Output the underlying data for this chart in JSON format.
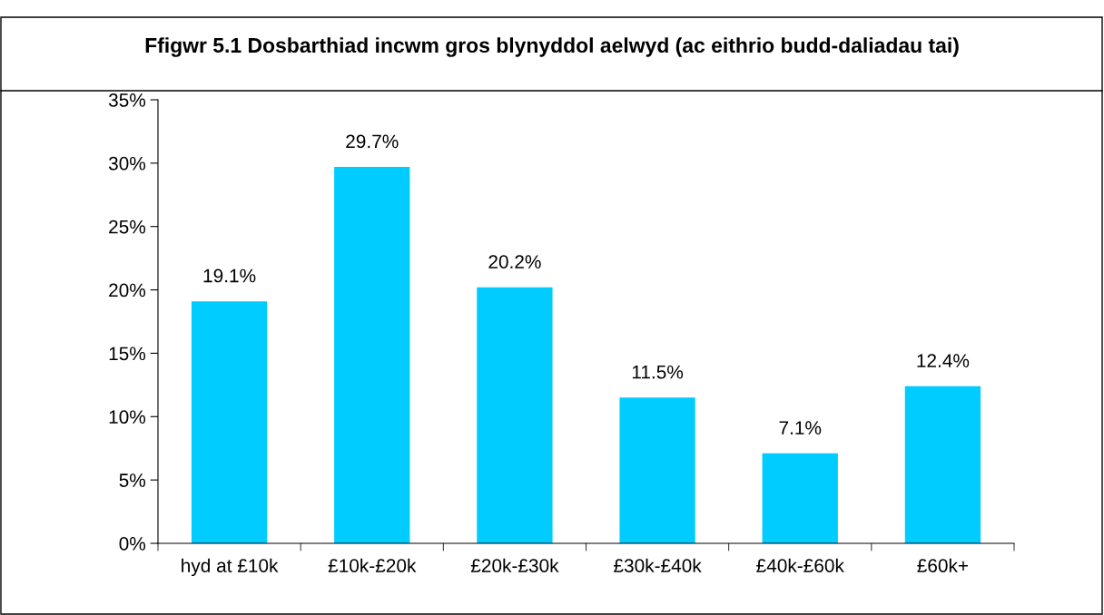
{
  "chart_data": {
    "type": "bar",
    "title": "Ffigwr 5.1 Dosbarthiad incwm gros blynyddol aelwyd (ac eithrio budd-daliadau tai)",
    "categories": [
      "hyd at £10k",
      "£10k-£20k",
      "£20k-£30k",
      "£30k-£40k",
      "£40k-£60k",
      "£60k+"
    ],
    "values": [
      19.1,
      29.7,
      20.2,
      11.5,
      7.1,
      12.4
    ],
    "value_labels": [
      "19.1%",
      "29.7%",
      "20.2%",
      "11.5%",
      "7.1%",
      "12.4%"
    ],
    "color": "#00ccff",
    "ylim": [
      0,
      35
    ],
    "yticks": [
      {
        "value": 0,
        "label": "0%"
      },
      {
        "value": 5,
        "label": "5%"
      },
      {
        "value": 10,
        "label": "10%"
      },
      {
        "value": 15,
        "label": "15%"
      },
      {
        "value": 20,
        "label": "20%"
      },
      {
        "value": 25,
        "label": "25%"
      },
      {
        "value": 30,
        "label": "30%"
      },
      {
        "value": 35,
        "label": "35%"
      }
    ],
    "grid": false,
    "legend": false
  }
}
